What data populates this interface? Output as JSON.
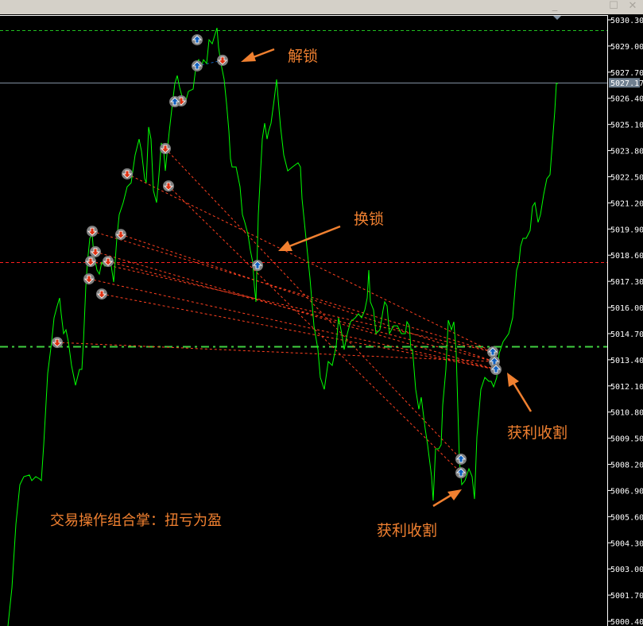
{
  "window": {
    "controls": {
      "minimize": "_",
      "maximize": "☐",
      "close": "✕"
    }
  },
  "colors": {
    "background": "#000000",
    "price_line": "#00ff00",
    "sell_line": "#ff4020",
    "buy_marker": "#1060c0",
    "sell_marker": "#e03010",
    "annotation": "#f08030",
    "bid_line": "#8090a0"
  },
  "chart_data": {
    "type": "line",
    "title": "",
    "xlabel": "",
    "ylabel": "",
    "ylim": [
      5000.4,
      5030.3
    ],
    "y_ticks": [
      "5030.30",
      "5029.00",
      "5027.70",
      "5026.40",
      "5025.10",
      "5023.80",
      "5022.50",
      "5021.20",
      "5019.90",
      "5018.60",
      "5017.30",
      "5016.00",
      "5014.70",
      "5013.40",
      "5012.10",
      "5010.80",
      "5009.50",
      "5008.20",
      "5006.90",
      "5005.60",
      "5004.30",
      "5003.00",
      "5001.70",
      "5000.40"
    ],
    "current_price": "5027.17",
    "grid": false,
    "series": [
      {
        "bars": [
          10,
          15,
          20,
          25,
          30,
          37,
          40,
          45,
          50,
          52,
          55,
          60,
          65,
          68,
          72,
          75,
          77,
          80,
          83,
          86,
          90,
          95,
          100,
          103,
          105,
          108,
          110,
          113,
          116,
          118,
          122,
          125,
          128,
          132,
          135,
          140,
          143,
          147,
          150,
          155,
          160,
          165,
          170,
          175,
          178,
          182,
          184,
          187,
          190,
          193,
          197,
          200,
          203,
          206,
          208,
          210,
          213,
          217,
          220,
          223,
          226,
          230,
          233,
          237,
          243,
          247,
          250,
          253,
          256,
          260,
          263,
          267,
          270,
          273,
          275,
          278,
          282,
          285,
          288,
          290,
          292,
          297,
          302,
          305,
          308,
          312,
          315,
          318,
          320,
          322,
          325,
          330,
          333,
          336,
          338,
          341,
          345,
          348,
          350,
          353,
          357,
          362,
          368,
          375,
          378,
          380,
          385,
          390,
          395,
          400,
          403,
          408,
          413,
          418,
          423,
          426,
          430,
          433,
          437,
          441,
          447,
          451,
          455,
          459,
          462,
          464,
          466,
          470,
          473,
          478,
          482,
          484,
          487,
          490,
          495,
          500,
          505,
          510,
          512,
          515,
          517,
          519,
          523,
          527,
          530,
          535,
          538,
          543,
          545,
          548,
          552,
          555,
          557,
          561,
          564,
          568,
          571,
          574,
          578,
          581,
          585,
          590,
          594,
          597,
          600,
          605,
          610,
          615,
          618,
          621,
          625,
          628,
          633,
          640,
          645,
          650,
          653,
          655,
          658,
          662,
          667,
          670,
          673,
          677,
          680,
          684,
          688,
          692,
          695,
          698,
          700,
          702
        ],
        "prices": [
          5000.16,
          5002.06,
          5005.22,
          5007.19,
          5007.59,
          5007.67,
          5007.39,
          5007.59,
          5007.47,
          5007.39,
          5009.17,
          5012.72,
          5014.3,
          5015.49,
          5016.08,
          5016.47,
          5015.68,
          5014.7,
          5014.89,
          5014.3,
          5013.12,
          5012.13,
          5012.92,
          5012.92,
          5014.3,
          5017.07,
          5018.25,
          5019.44,
          5019.63,
          5018.65,
          5017.86,
          5017.66,
          5018.25,
          5018.05,
          5018.25,
          5018.05,
          5017.26,
          5019.44,
          5020.62,
          5021.21,
          5022.0,
          5022.2,
          5023.58,
          5024.37,
          5023.78,
          5022.4,
          5022.2,
          5024.97,
          5024.37,
          5021.81,
          5021.21,
          5022.6,
          5024.18,
          5023.78,
          5022.79,
          5023.58,
          5024.77,
          5026.15,
          5027.14,
          5027.53,
          5026.94,
          5026.35,
          5026.15,
          5026.74,
          5026.86,
          5028.13,
          5028.32,
          5027.93,
          5028.32,
          5028.13,
          5029.31,
          5029.11,
          5029.51,
          5029.9,
          5028.92,
          5028.13,
          5027.34,
          5026.15,
          5024.77,
          5023.39,
          5022.99,
          5022.99,
          5022.0,
          5020.62,
          5020.23,
          5019.63,
          5018.84,
          5018.25,
          5017.07,
          5016.28,
          5020.62,
          5024.37,
          5025.16,
          5024.37,
          5024.77,
          5025.16,
          5026.35,
          5027.34,
          5026.35,
          5024.97,
          5023.58,
          5022.79,
          5022.99,
          5023.19,
          5022.99,
          5021.41,
          5019.44,
          5017.46,
          5015.09,
          5013.91,
          5012.52,
          5011.93,
          5013.31,
          5013.12,
          5014.1,
          5015.49,
          5014.7,
          5013.91,
          5014.7,
          5015.29,
          5015.49,
          5015.68,
          5015.49,
          5015.88,
          5016.47,
          5017.86,
          5016.28,
          5015.88,
          5014.7,
          5014.89,
          5015.88,
          5016.28,
          5016.08,
          5014.7,
          5015.09,
          5015.09,
          5014.7,
          5014.7,
          5015.29,
          5015.09,
          5013.91,
          5013.91,
          5011.93,
          5010.94,
          5011.54,
          5009.96,
          5009.17,
          5007.59,
          5006.4,
          5008.97,
          5008.97,
          5009.17,
          5011.14,
          5012.92,
          5015.37,
          5014.89,
          5015.29,
          5013.71,
          5008.38,
          5007.19,
          5007.39,
          5007.98,
          5007.59,
          5006.48,
          5009.56,
          5011.93,
          5012.52,
          5012.33,
          5012.33,
          5012.05,
          5012.52,
          5013.71,
          5014.3,
          5014.7,
          5015.49,
          5017.86,
          5018.25,
          5019.04,
          5019.44,
          5019.44,
          5019.83,
          5021.02,
          5021.21,
          5020.23,
          5020.62,
          5021.61,
          5022.4,
          5022.6,
          5024.18,
          5025.76,
          5027.14,
          5027.14
        ]
      }
    ],
    "horizontal_lines": [
      {
        "price": 5029.77,
        "style": "dashed",
        "color": "#20c020"
      },
      {
        "price": 5027.17,
        "style": "solid",
        "color": "#8090a0"
      },
      {
        "price": 5018.27,
        "style": "dashed",
        "color": "#ff2020"
      },
      {
        "price": 5014.07,
        "style": "dash-dot",
        "color": "#40d040"
      }
    ],
    "trades": [
      {
        "type": "sell",
        "bar": 72,
        "price": 5014.26
      },
      {
        "type": "sell",
        "bar": 116,
        "price": 5019.79
      },
      {
        "type": "sell",
        "bar": 152,
        "price": 5019.63
      },
      {
        "type": "sell",
        "bar": 120,
        "price": 5018.77
      },
      {
        "type": "sell",
        "bar": 114,
        "price": 5018.29
      },
      {
        "type": "sell",
        "bar": 136,
        "price": 5018.29
      },
      {
        "type": "sell",
        "bar": 112,
        "price": 5017.42
      },
      {
        "type": "sell",
        "bar": 128,
        "price": 5016.67
      },
      {
        "type": "sell",
        "bar": 160,
        "price": 5022.64
      },
      {
        "type": "sell",
        "bar": 208,
        "price": 5023.9
      },
      {
        "type": "sell",
        "bar": 212,
        "price": 5022.04
      },
      {
        "type": "sell",
        "bar": 228,
        "price": 5026.27
      },
      {
        "type": "sell",
        "bar": 280,
        "price": 5028.29
      },
      {
        "type": "buy",
        "bar": 248,
        "price": 5029.31
      },
      {
        "type": "buy",
        "bar": 248,
        "price": 5028.01
      },
      {
        "type": "buy",
        "bar": 220,
        "price": 5026.23
      },
      {
        "type": "buy",
        "bar": 324,
        "price": 5018.09
      },
      {
        "type": "buy",
        "bar": 580,
        "price": 5008.46
      },
      {
        "type": "buy",
        "bar": 580,
        "price": 5007.78
      },
      {
        "type": "buy",
        "bar": 620,
        "price": 5013.79
      },
      {
        "type": "buy",
        "bar": 622,
        "price": 5013.31
      },
      {
        "type": "buy",
        "bar": 624,
        "price": 5012.92
      }
    ],
    "trade_links": [
      {
        "from": [
          72,
          5014.26
        ],
        "to": [
          622,
          5013.31
        ],
        "color": "#ff4020"
      },
      {
        "from": [
          116,
          5019.79
        ],
        "to": [
          620,
          5013.79
        ],
        "color": "#ff4020"
      },
      {
        "from": [
          152,
          5019.63
        ],
        "to": [
          622,
          5013.31
        ],
        "color": "#ff4020"
      },
      {
        "from": [
          120,
          5018.77
        ],
        "to": [
          624,
          5012.92
        ],
        "color": "#ff4020"
      },
      {
        "from": [
          114,
          5018.29
        ],
        "to": [
          620,
          5013.79
        ],
        "color": "#ff4020"
      },
      {
        "from": [
          136,
          5018.29
        ],
        "to": [
          622,
          5013.31
        ],
        "color": "#ff4020"
      },
      {
        "from": [
          112,
          5017.42
        ],
        "to": [
          624,
          5012.92
        ],
        "color": "#ff4020"
      },
      {
        "from": [
          128,
          5016.67
        ],
        "to": [
          624,
          5012.92
        ],
        "color": "#ff4020"
      },
      {
        "from": [
          160,
          5022.64
        ],
        "to": [
          620,
          5013.79
        ],
        "color": "#ff4020"
      },
      {
        "from": [
          208,
          5023.9
        ],
        "to": [
          580,
          5008.46
        ],
        "color": "#ff4020"
      },
      {
        "from": [
          212,
          5022.04
        ],
        "to": [
          580,
          5007.78
        ],
        "color": "#ff4020"
      },
      {
        "from": [
          248,
          5028.01
        ],
        "to": [
          280,
          5028.29
        ],
        "color": "#1060c0"
      }
    ]
  },
  "annotations": {
    "unlock": "解锁",
    "switch_lock": "换锁",
    "take_profit_right": "获利收割",
    "take_profit_bottom": "获利收割",
    "caption": "交易操作组合掌：扭亏为盈"
  }
}
